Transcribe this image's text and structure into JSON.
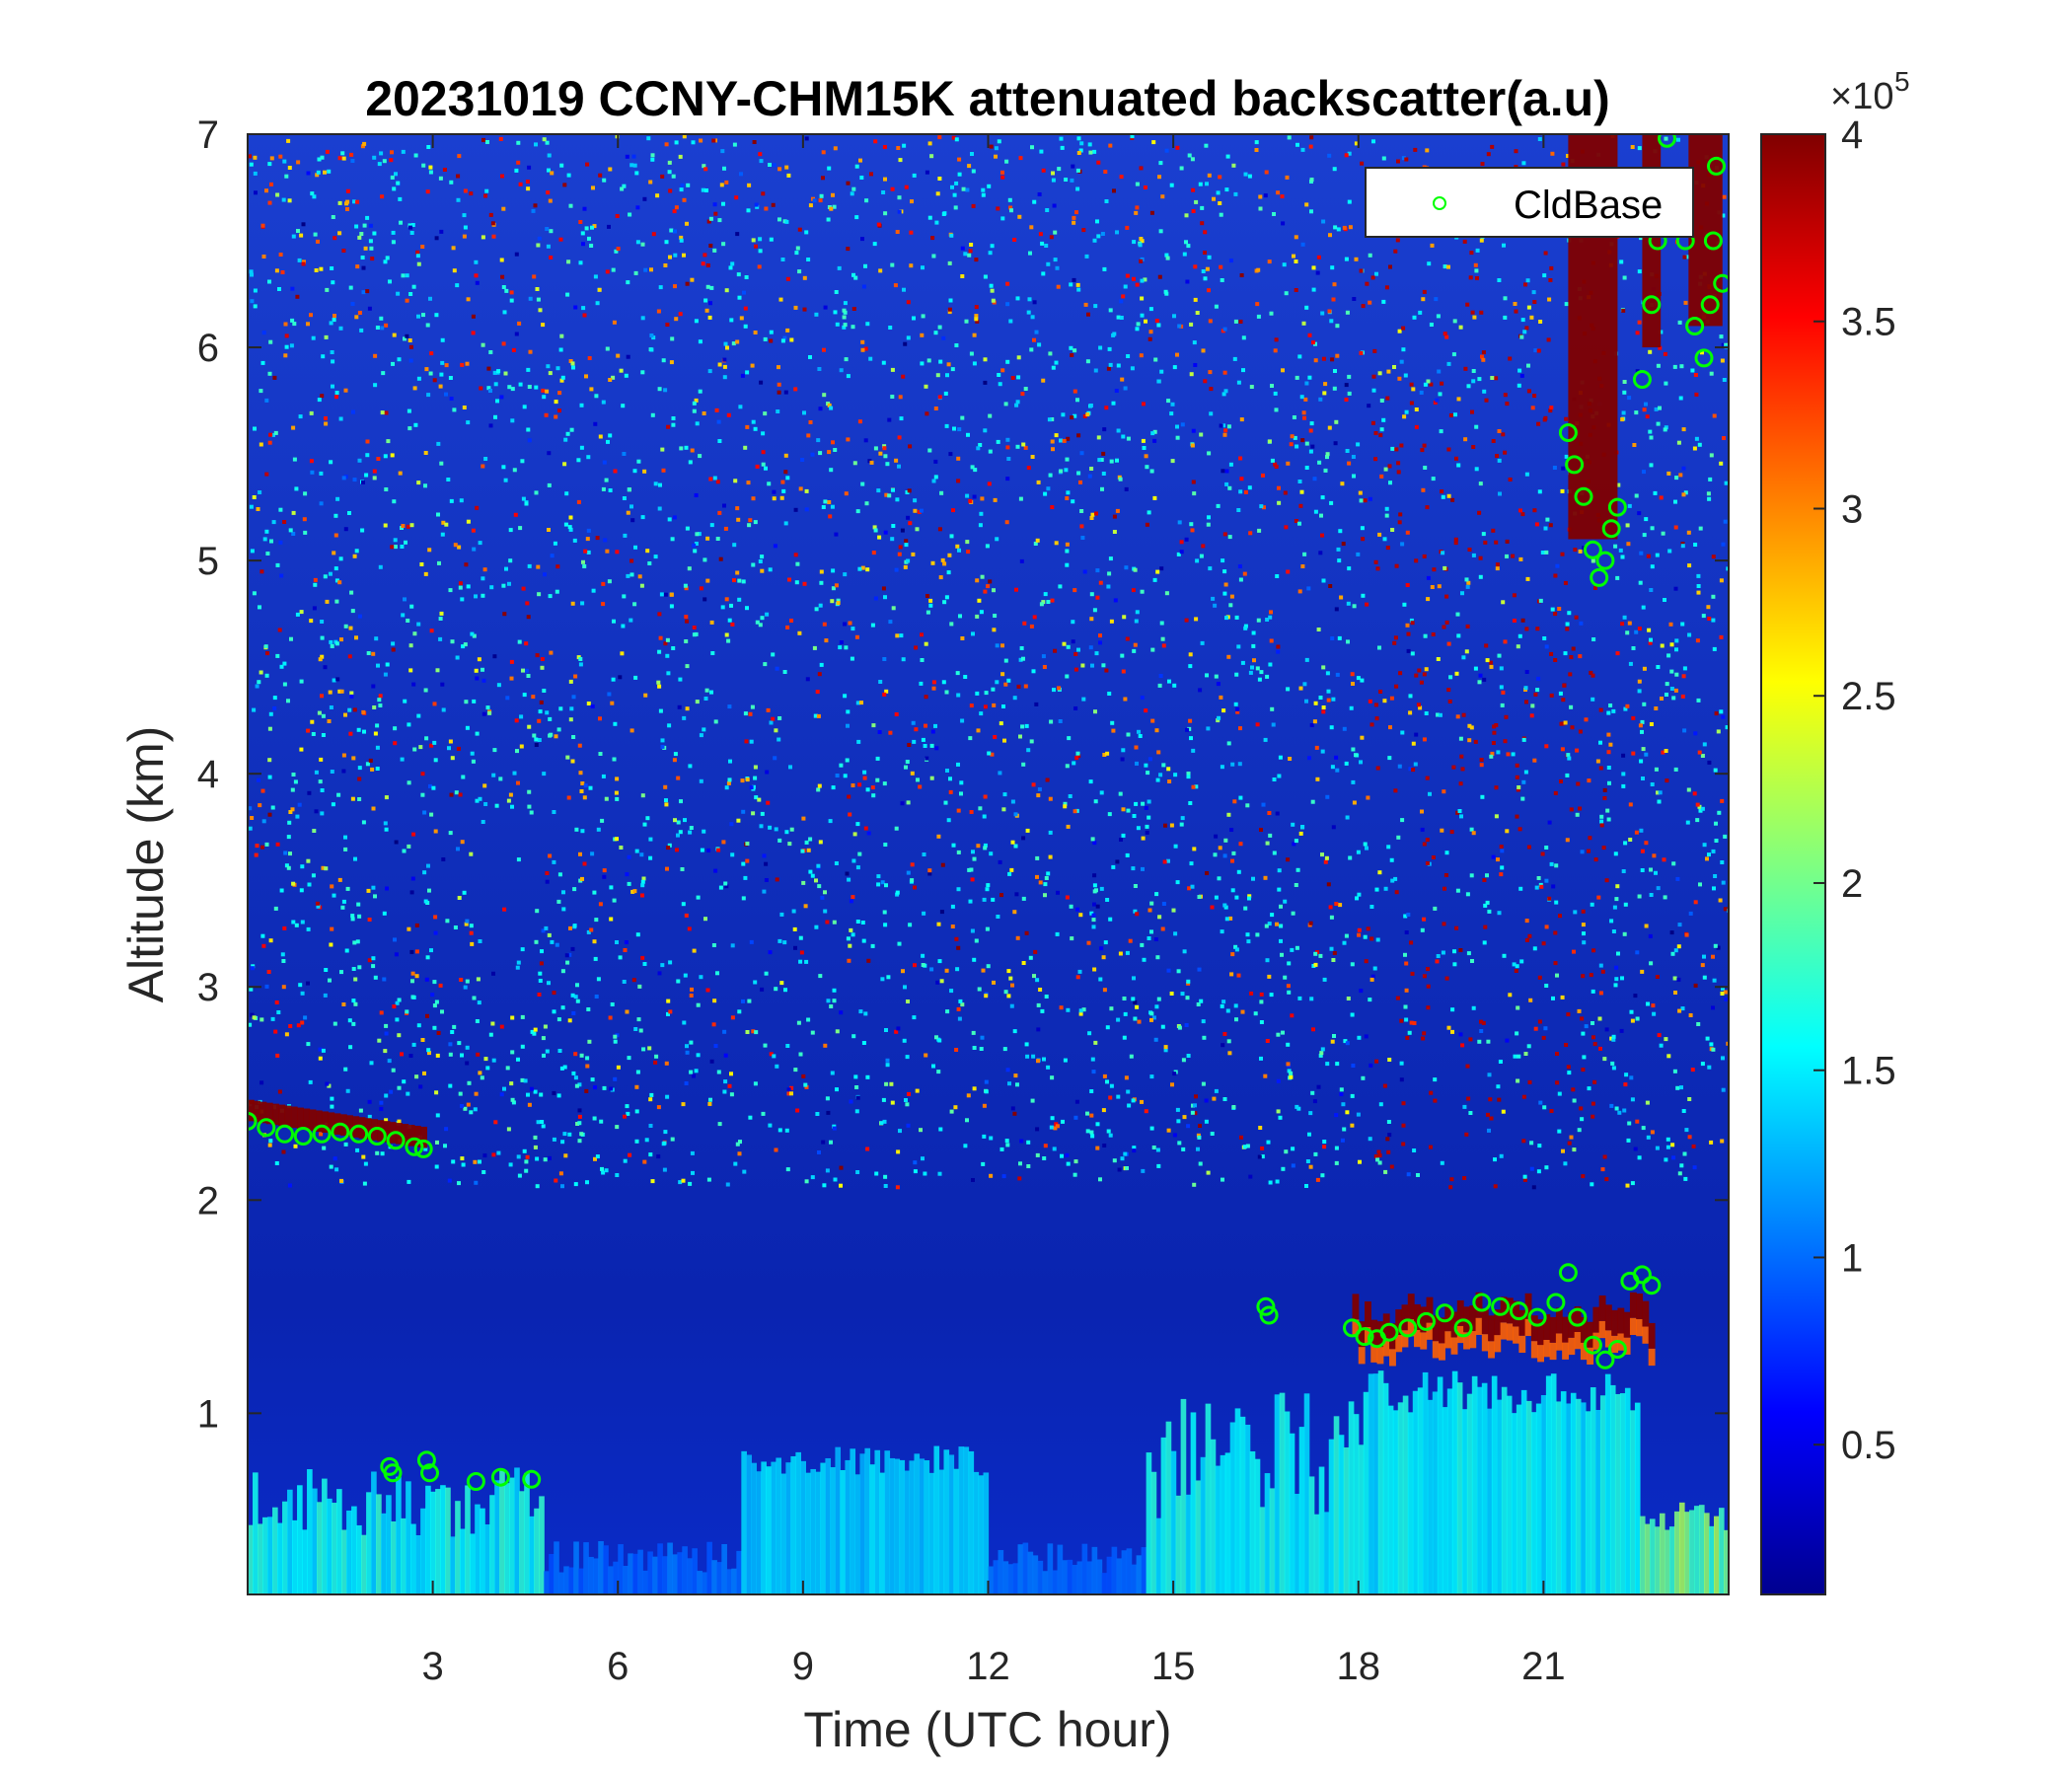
{
  "chart_data": {
    "type": "heatmap",
    "title": "20231019 CCNY-CHM15K attenuated backscatter(a.u)",
    "xlabel": "Time (UTC hour)",
    "ylabel": "Altitude (km)",
    "xlim": [
      0,
      24
    ],
    "ylim": [
      0.15,
      7
    ],
    "xticks": [
      3,
      6,
      9,
      12,
      15,
      18,
      21
    ],
    "yticks": [
      1,
      2,
      3,
      4,
      5,
      6,
      7
    ],
    "colorbar": {
      "colormap": "jet",
      "range": [
        10000,
        400000
      ],
      "ticks": [
        0.5,
        1,
        1.5,
        2,
        2.5,
        3,
        3.5,
        4
      ],
      "exponent_label": "×10",
      "exponent": "5"
    },
    "legend": {
      "entries": [
        "CldBase"
      ],
      "placement": "top-right",
      "marker_color": "#00ff00"
    },
    "series": [
      {
        "name": "CldBase",
        "marker": "circle",
        "points": [
          [
            0.0,
            2.37
          ],
          [
            0.3,
            2.34
          ],
          [
            0.6,
            2.31
          ],
          [
            0.9,
            2.3
          ],
          [
            1.2,
            2.31
          ],
          [
            1.5,
            2.32
          ],
          [
            1.8,
            2.31
          ],
          [
            2.1,
            2.3
          ],
          [
            2.4,
            2.28
          ],
          [
            2.7,
            2.25
          ],
          [
            2.85,
            2.24
          ],
          [
            2.3,
            0.75
          ],
          [
            2.35,
            0.72
          ],
          [
            2.9,
            0.78
          ],
          [
            2.95,
            0.72
          ],
          [
            3.7,
            0.68
          ],
          [
            4.1,
            0.7
          ],
          [
            4.6,
            0.69
          ],
          [
            16.5,
            1.5
          ],
          [
            16.55,
            1.46
          ],
          [
            17.9,
            1.4
          ],
          [
            18.1,
            1.36
          ],
          [
            18.3,
            1.35
          ],
          [
            18.5,
            1.38
          ],
          [
            18.8,
            1.4
          ],
          [
            19.1,
            1.43
          ],
          [
            19.4,
            1.47
          ],
          [
            19.7,
            1.4
          ],
          [
            20.0,
            1.52
          ],
          [
            20.3,
            1.5
          ],
          [
            20.6,
            1.48
          ],
          [
            20.9,
            1.45
          ],
          [
            21.2,
            1.52
          ],
          [
            21.4,
            1.66
          ],
          [
            21.55,
            1.45
          ],
          [
            21.8,
            1.32
          ],
          [
            22.0,
            1.25
          ],
          [
            22.2,
            1.3
          ],
          [
            22.4,
            1.62
          ],
          [
            22.6,
            1.65
          ],
          [
            22.75,
            1.6
          ],
          [
            21.4,
            5.6
          ],
          [
            21.5,
            5.45
          ],
          [
            21.65,
            5.3
          ],
          [
            21.8,
            5.05
          ],
          [
            21.9,
            4.92
          ],
          [
            22.0,
            5.0
          ],
          [
            22.1,
            5.15
          ],
          [
            22.2,
            5.25
          ],
          [
            22.6,
            5.85
          ],
          [
            22.75,
            6.2
          ],
          [
            22.85,
            6.5
          ],
          [
            23.0,
            6.98
          ],
          [
            23.3,
            6.5
          ],
          [
            23.45,
            6.1
          ],
          [
            23.6,
            5.95
          ],
          [
            23.7,
            6.2
          ],
          [
            23.75,
            6.5
          ],
          [
            23.8,
            6.85
          ],
          [
            23.9,
            6.3
          ]
        ]
      }
    ]
  }
}
